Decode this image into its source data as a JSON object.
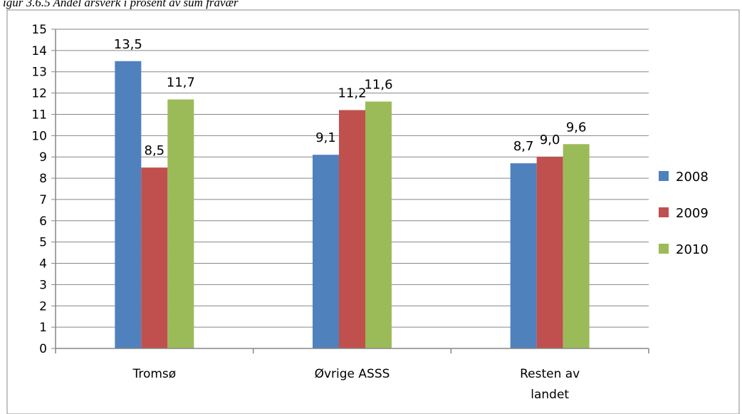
{
  "caption": "igur 3.6.5 Andel årsverk i prosent av sum fravær",
  "chart_data": {
    "type": "bar",
    "categories": [
      [
        "Tromsø"
      ],
      [
        "Øvrige ASSS"
      ],
      [
        "Resten av",
        "landet"
      ]
    ],
    "series": [
      {
        "name": "2008",
        "color": "#4f81bd",
        "values": [
          13.5,
          9.1,
          8.7
        ],
        "labels": [
          "13,5",
          "9,1",
          "8,7"
        ]
      },
      {
        "name": "2009",
        "color": "#c0504d",
        "values": [
          8.5,
          11.2,
          9.0
        ],
        "labels": [
          "8,5",
          "11,2",
          "9,0"
        ]
      },
      {
        "name": "2010",
        "color": "#9bbb59",
        "values": [
          11.7,
          11.6,
          9.6
        ],
        "labels": [
          "11,7",
          "11,6",
          "9,6"
        ]
      }
    ],
    "ylim": [
      0,
      15
    ],
    "yticks": [
      0,
      1,
      2,
      3,
      4,
      5,
      6,
      7,
      8,
      9,
      10,
      11,
      12,
      13,
      14,
      15
    ],
    "grid": true,
    "legend": "right"
  }
}
